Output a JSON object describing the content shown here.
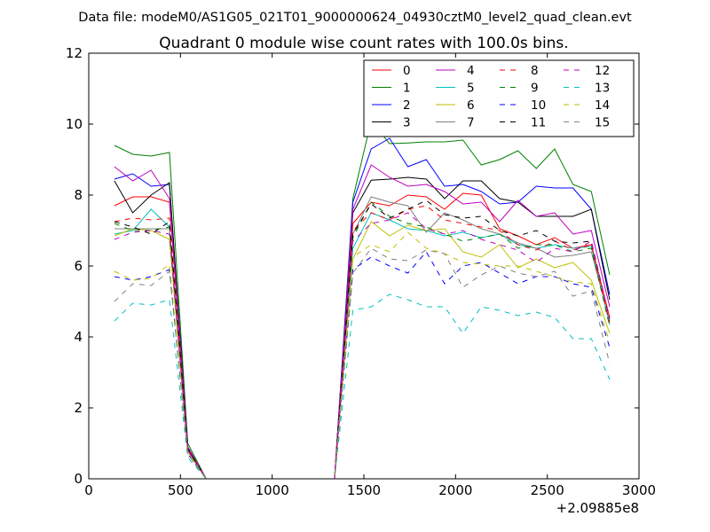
{
  "figure": {
    "suptitle": "Data file: modeM0/AS1G05_021T01_9000000624_04930cztM0_level2_quad_clean.evt"
  },
  "chart_data": {
    "type": "line",
    "title": "Quadrant 0 module wise count rates with 100.0s bins.",
    "xlabel": "",
    "ylabel": "",
    "x_offset_label": "+2.09885e8",
    "xlim": [
      0,
      3000
    ],
    "ylim": [
      0,
      12
    ],
    "xticks": [
      0,
      500,
      1000,
      1500,
      2000,
      2500,
      3000
    ],
    "yticks": [
      0,
      2,
      4,
      6,
      8,
      10,
      12
    ],
    "grid": false,
    "legend_position": "top-right",
    "legend_columns": 4,
    "x": [
      140,
      240,
      340,
      440,
      540,
      640,
      740,
      840,
      940,
      1040,
      1140,
      1240,
      1340,
      1440,
      1540,
      1640,
      1740,
      1840,
      1940,
      2040,
      2140,
      2240,
      2340,
      2440,
      2540,
      2640,
      2740,
      2840
    ],
    "series": [
      {
        "name": "0",
        "color": "#ff0000",
        "dash": "solid",
        "values": [
          7.7,
          7.95,
          7.95,
          7.8,
          0.9,
          0,
          0,
          0,
          0,
          0,
          0,
          0,
          0,
          7.2,
          7.8,
          7.7,
          8.0,
          7.95,
          7.6,
          8.05,
          8.0,
          7.05,
          6.85,
          6.6,
          6.8,
          6.5,
          6.6,
          4.55
        ]
      },
      {
        "name": "1",
        "color": "#008000",
        "dash": "solid",
        "values": [
          9.4,
          9.15,
          9.1,
          9.2,
          1.0,
          0,
          0,
          0,
          0,
          0,
          0,
          0,
          0,
          7.9,
          10.1,
          9.45,
          9.47,
          9.5,
          9.5,
          9.55,
          8.85,
          9.0,
          9.25,
          8.75,
          9.3,
          8.3,
          8.1,
          5.75
        ]
      },
      {
        "name": "2",
        "color": "#0000ff",
        "dash": "solid",
        "values": [
          8.45,
          8.6,
          8.25,
          8.3,
          0.9,
          0,
          0,
          0,
          0,
          0,
          0,
          0,
          0,
          7.8,
          9.3,
          9.6,
          8.8,
          9.0,
          8.25,
          8.3,
          8.1,
          7.75,
          7.8,
          8.25,
          8.2,
          8.2,
          7.6,
          5.2
        ]
      },
      {
        "name": "3",
        "color": "#000000",
        "dash": "solid",
        "values": [
          8.4,
          7.5,
          8.0,
          8.35,
          0.85,
          0,
          0,
          0,
          0,
          0,
          0,
          0,
          0,
          7.5,
          8.42,
          8.45,
          8.5,
          8.45,
          7.9,
          8.4,
          8.4,
          7.9,
          7.8,
          7.4,
          7.4,
          7.4,
          7.6,
          5.05
        ]
      },
      {
        "name": "4",
        "color": "#bf00bf",
        "dash": "solid",
        "values": [
          8.8,
          8.4,
          8.7,
          7.9,
          0.9,
          0,
          0,
          0,
          0,
          0,
          0,
          0,
          0,
          7.6,
          8.85,
          8.5,
          8.25,
          8.3,
          8.1,
          7.75,
          7.8,
          7.25,
          7.85,
          7.4,
          7.5,
          6.9,
          7.0,
          4.85
        ]
      },
      {
        "name": "5",
        "color": "#00bfbf",
        "dash": "solid",
        "values": [
          6.9,
          7.0,
          7.6,
          7.1,
          0.8,
          0,
          0,
          0,
          0,
          0,
          0,
          0,
          0,
          6.5,
          7.5,
          7.3,
          7.05,
          7.0,
          6.85,
          6.95,
          6.8,
          6.9,
          6.6,
          6.5,
          6.6,
          6.5,
          6.55,
          4.35
        ]
      },
      {
        "name": "6",
        "color": "#bfbf00",
        "dash": "solid",
        "values": [
          6.85,
          7.05,
          7.0,
          6.75,
          0.75,
          0,
          0,
          0,
          0,
          0,
          0,
          0,
          0,
          6.2,
          7.25,
          6.85,
          7.15,
          7.0,
          7.05,
          6.4,
          6.25,
          6.6,
          5.95,
          6.2,
          5.95,
          6.1,
          5.6,
          4.1
        ]
      },
      {
        "name": "7",
        "color": "#808080",
        "dash": "solid",
        "values": [
          7.05,
          7.05,
          7.05,
          7.05,
          0.8,
          0,
          0,
          0,
          0,
          0,
          0,
          0,
          0,
          6.9,
          7.95,
          7.8,
          7.7,
          6.95,
          7.5,
          7.3,
          7.05,
          6.9,
          6.65,
          6.5,
          6.25,
          6.3,
          6.4,
          4.45
        ]
      },
      {
        "name": "8",
        "color": "#ff0000",
        "dash": "dashed",
        "values": [
          7.25,
          7.35,
          7.3,
          7.35,
          0.85,
          0,
          0,
          0,
          0,
          0,
          0,
          0,
          0,
          7.0,
          7.5,
          7.3,
          7.6,
          7.7,
          7.3,
          7.2,
          7.1,
          7.0,
          6.6,
          6.45,
          6.7,
          6.45,
          6.6,
          4.4
        ]
      },
      {
        "name": "9",
        "color": "#008000",
        "dash": "dashed",
        "values": [
          7.2,
          7.0,
          7.0,
          7.1,
          0.8,
          0,
          0,
          0,
          0,
          0,
          0,
          0,
          0,
          6.8,
          7.8,
          7.4,
          7.2,
          7.1,
          6.9,
          6.7,
          6.8,
          6.9,
          6.5,
          6.6,
          6.6,
          6.4,
          6.5,
          4.3
        ]
      },
      {
        "name": "10",
        "color": "#0000ff",
        "dash": "dashed",
        "values": [
          5.7,
          5.6,
          5.7,
          5.9,
          0.7,
          0,
          0,
          0,
          0,
          0,
          0,
          0,
          0,
          5.9,
          6.25,
          6.0,
          5.8,
          6.4,
          5.5,
          6.0,
          6.1,
          5.8,
          5.5,
          5.7,
          5.7,
          5.5,
          5.4,
          3.7
        ]
      },
      {
        "name": "11",
        "color": "#000000",
        "dash": "dashed",
        "values": [
          7.25,
          7.1,
          6.9,
          7.25,
          0.85,
          0,
          0,
          0,
          0,
          0,
          0,
          0,
          0,
          6.9,
          7.75,
          7.35,
          7.6,
          7.85,
          7.45,
          7.35,
          7.4,
          7.0,
          6.85,
          7.0,
          6.7,
          6.65,
          6.7,
          4.5
        ]
      },
      {
        "name": "12",
        "color": "#bf00bf",
        "dash": "dashed",
        "values": [
          6.75,
          6.95,
          7.0,
          6.9,
          0.8,
          0,
          0,
          0,
          0,
          0,
          0,
          0,
          0,
          6.7,
          7.2,
          7.3,
          7.5,
          7.05,
          6.9,
          7.0,
          6.75,
          6.6,
          6.45,
          6.1,
          6.5,
          6.4,
          6.7,
          4.5
        ]
      },
      {
        "name": "13",
        "color": "#00bfbf",
        "dash": "dashed",
        "values": [
          4.45,
          4.95,
          4.9,
          5.05,
          0.6,
          0,
          0,
          0,
          0,
          0,
          0,
          0,
          0,
          4.75,
          4.85,
          5.2,
          5.05,
          4.85,
          4.85,
          4.1,
          4.85,
          4.75,
          4.6,
          4.7,
          4.55,
          3.95,
          3.95,
          2.8
        ]
      },
      {
        "name": "14",
        "color": "#bfbf00",
        "dash": "dashed",
        "values": [
          5.85,
          5.6,
          5.65,
          6.05,
          0.75,
          0,
          0,
          0,
          0,
          0,
          0,
          0,
          0,
          6.25,
          6.6,
          6.4,
          6.95,
          6.5,
          6.35,
          6.1,
          6.05,
          6.0,
          6.0,
          5.85,
          5.7,
          5.55,
          5.5,
          3.85
        ]
      },
      {
        "name": "15",
        "color": "#808080",
        "dash": "dashed",
        "values": [
          5.0,
          5.5,
          5.45,
          5.85,
          0.7,
          0,
          0,
          0,
          0,
          0,
          0,
          0,
          0,
          5.8,
          6.5,
          6.2,
          6.15,
          6.45,
          6.35,
          5.4,
          5.75,
          6.0,
          5.8,
          5.7,
          5.85,
          5.15,
          5.3,
          3.25
        ]
      }
    ]
  }
}
